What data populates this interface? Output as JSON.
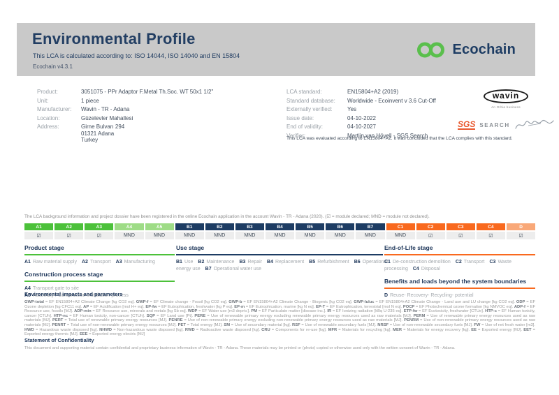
{
  "header": {
    "title": "Environmental Profile",
    "subtitle": "This LCA is calculated according to: ISO 14044, ISO 14040 and EN 15804",
    "version": "Ecochain v4.3.1",
    "brand": "Ecochain"
  },
  "product": {
    "rows": [
      {
        "label": "Product:",
        "value": "3051075 - PPr Adaptor F.Metal Th.Soc. WT 50x1 1/2\""
      },
      {
        "label": "Unit:",
        "value": "1 piece"
      },
      {
        "label": "Manufacturer:",
        "value": "Wavin - TR - Adana"
      },
      {
        "label": "Location:",
        "value": "Güzelevler Mahallesi"
      },
      {
        "label": "Address:",
        "value": "Girne Bulvarı 294\n01321 Adana\nTurkey"
      }
    ]
  },
  "lca": {
    "rows": [
      {
        "label": "LCA standard:",
        "value": "EN15804+A2 (2019)"
      },
      {
        "label": "Standard database:",
        "value": "Worldwide - Ecoinvent v 3.6 Cut-Off"
      },
      {
        "label": "Externally verified:",
        "value": "Yes"
      },
      {
        "label": "Issue date:",
        "value": "04-10-2022"
      },
      {
        "label": "End of validity:",
        "value": "04-10-2027"
      },
      {
        "label": "Verifier:",
        "value": "Martijn van Hövell - SGS Search"
      }
    ],
    "evaluation_note": "This LCA was evaluated according to EN15804+A2. It was concluded that the LCA complies with this standard."
  },
  "wavin": {
    "name": "wavin",
    "tagline": "An Orbia business"
  },
  "verifier_logos": {
    "sgs": "SGS",
    "search": "SEARCH"
  },
  "icons": {
    "ecochain_mark": "infinity-loop-icon",
    "signature": "handwritten-signature-icon",
    "declared_check": "☑"
  },
  "registration_note": "The LCA background information and project dossier have been registered in the online Ecochain application in the account Wavin - TR - Adana (2020). (☑ = module declared; MND = module not declared).",
  "modules": [
    {
      "code": "A1",
      "status": "☑",
      "group": "g-a"
    },
    {
      "code": "A2",
      "status": "☑",
      "group": "g-a"
    },
    {
      "code": "A3",
      "status": "☑",
      "group": "g-a"
    },
    {
      "code": "A4",
      "status": "MND",
      "group": "g-a2"
    },
    {
      "code": "A5",
      "status": "MND",
      "group": "g-a2"
    },
    {
      "code": "B1",
      "status": "MND",
      "group": "g-b"
    },
    {
      "code": "B2",
      "status": "MND",
      "group": "g-b"
    },
    {
      "code": "B3",
      "status": "MND",
      "group": "g-b"
    },
    {
      "code": "B4",
      "status": "MND",
      "group": "g-b"
    },
    {
      "code": "B5",
      "status": "MND",
      "group": "g-b"
    },
    {
      "code": "B6",
      "status": "MND",
      "group": "g-b"
    },
    {
      "code": "B7",
      "status": "MND",
      "group": "g-b"
    },
    {
      "code": "C1",
      "status": "MND",
      "group": "g-c"
    },
    {
      "code": "C2",
      "status": "☑",
      "group": "g-c"
    },
    {
      "code": "C3",
      "status": "☑",
      "group": "g-c"
    },
    {
      "code": "C4",
      "status": "☑",
      "group": "g-c"
    },
    {
      "code": "D",
      "status": "☑",
      "group": "g-d"
    }
  ],
  "stages": {
    "product": {
      "title": "Product stage",
      "items": [
        {
          "code": "A1",
          "label": "Raw material supply"
        },
        {
          "code": "A2",
          "label": "Transport"
        },
        {
          "code": "A3",
          "label": "Manufacturing"
        }
      ]
    },
    "construction": {
      "title": "Construction process stage",
      "items": [
        {
          "code": "A4",
          "label": "Transport gate to site"
        },
        {
          "code": "A5",
          "label": "Assembly / Construction installation process"
        }
      ]
    },
    "use": {
      "title": "Use stage",
      "items": [
        {
          "code": "B1",
          "label": "Use"
        },
        {
          "code": "B2",
          "label": "Maintenance"
        },
        {
          "code": "B3",
          "label": "Repair"
        },
        {
          "code": "B4",
          "label": "Replacement"
        },
        {
          "code": "B5",
          "label": "Refurbishment"
        },
        {
          "code": "B6",
          "label": "Operational energy use"
        },
        {
          "code": "B7",
          "label": "Operational water use"
        }
      ]
    },
    "eol": {
      "title": "End-of-Life stage",
      "items": [
        {
          "code": "C1",
          "label": "De-construction demolition"
        },
        {
          "code": "C2",
          "label": "Transport"
        },
        {
          "code": "C3",
          "label": "Waste processing"
        },
        {
          "code": "C4",
          "label": "Disposal"
        }
      ]
    },
    "benefits": {
      "title": "Benefits and loads beyond the system boundaries",
      "items": [
        {
          "code": "D",
          "label": "Reuse- Recovery- Recycling- potential"
        }
      ]
    }
  },
  "impacts": {
    "title": "Environmental impacts and parameters",
    "text": "GWP-total = EF EN15804+A2 Climate Change [kg CO2 eq]. GWP-f = EF Climate change - Fossil [kg CO2 eq]. GWP-b = EF EN15804+A2 Climate Change - Biogenic [kg CO2 eq]. GWP-luluc = EF EN15804+A2 Climate Change - Land use and LU change [kg CO2 eq]. ODP = EF Ozone depletion [kg CFC11 eq]. AP = EF Acidification [mol H+ eq]. EP-fw = EF Eutrophication, freshwater [kg P eq]. EP-m = EF Eutrophication, marine [kg N eq]. EP-T = EF Eutrophication, terrestrial [mol N eq]. POCP = EF Photochemical ozone formation [kg NMVOC eq]. ADP-f = EF Resource use, fossils [MJ]. ADP-min = EF Resource use, minerals and metals [kg Sb eq]. WDP = EF Water use [m3 depriv.]. PM = EF Particulate matter [disease inc.]. IR = EF Ionizing radiation [kBq U-235 eq]. ETP-fw = EF Ecotoxicity, freshwater [CTUe]. HTP-c = EF Human toxicity, cancer [CTUh]. HTP-nc = EF Human toxicity, non-cancer [CTUh]. SQP = EF Land use [Pt]. PERE = Use of renewable primary energy excluding renewable primary energy resources used as raw materials [MJ]. PERM = Use of renewable primary energy resources used as raw materials [MJ]. PERT = Total use of renewable primary energy resources [MJ]. PENRE = Use of non-renewable primary energy excluding non-renewable primary energy resources used as raw materials [MJ]. PENRM = Use of non-renewable primary energy resources used as raw materials [MJ]. PENRT = Total use of non-renewable primary energy resources [MJ]. PET = Total energy [MJ]. SM = Use of secondary material [kg]. RSF = Use of renewable secondary fuels [MJ]. NRSF = Use of non-renewable secondary fuels [MJ]. FW = Use of net fresh water [m3]. HWD = Hazardous waste disposed [kg]. NHWD = Non-hazardous waste disposed [kg]. RWD = Radioactive waste disposed [kg]. CRU = Components for re-use [kg]. MFR = Materials for recycling [kg]. MER = Materials for energy recovery [kg]. EE = Exported energy [MJ]. EET = Exported energy thermic [MJ]. EEE = Exported energy electric [MJ]"
  },
  "confidentiality": {
    "title": "Statement of Confidentiality",
    "text": "This document and supporting material contain confidential and proprietary business information of Wavin - TR - Adana. These materials may be printed or (photo) copied or otherwise used only with the written consent of Wavin - TR - Adana."
  },
  "colors": {
    "band_gray": "#c9c9c9",
    "navy": "#1d3c63",
    "green": "#4cc13a",
    "light_green": "#9edc86",
    "orange": "#f9691e",
    "light_orange": "#f9a878",
    "ecochain_green": "#5abf4c",
    "sgs_orange": "#e8562b"
  }
}
